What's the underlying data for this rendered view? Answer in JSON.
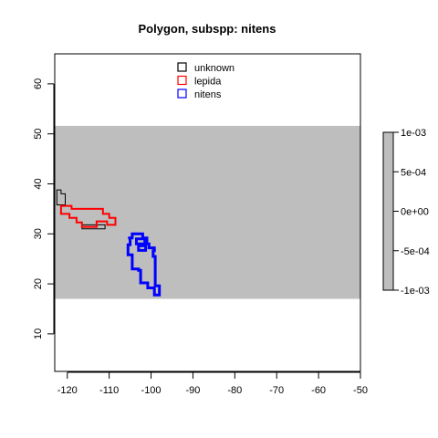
{
  "chart_data": {
    "type": "map-polygons",
    "title": "Polygon, subspp: nitens",
    "xlabel": "",
    "ylabel": "",
    "xlim": [
      -123,
      -50
    ],
    "ylim": [
      2.5,
      66
    ],
    "x_ticks": [
      -120,
      -110,
      -100,
      -90,
      -80,
      -70,
      -60,
      -50
    ],
    "y_ticks": [
      10,
      20,
      30,
      40,
      50,
      60
    ],
    "background_band": {
      "ymin": 17,
      "ymax": 51.6,
      "color": "#bebebe"
    },
    "legend_position": "top-center",
    "series": [
      {
        "name": "unknown",
        "color": "#000000",
        "line_width": 1,
        "polygons": [
          [
            [
              -122.5,
              35.8
            ],
            [
              -122.5,
              38.8
            ],
            [
              -121.5,
              38.8
            ],
            [
              -121.5,
              38.0
            ],
            [
              -120.5,
              38.0
            ],
            [
              -120.5,
              35.8
            ],
            [
              -122.5,
              35.8
            ]
          ],
          [
            [
              -116.5,
              31.8
            ],
            [
              -116.5,
              31.0
            ],
            [
              -111.0,
              31.0
            ],
            [
              -111.0,
              31.8
            ],
            [
              -116.5,
              31.8
            ]
          ]
        ]
      },
      {
        "name": "lepida",
        "color": "#ff0000",
        "line_width": 2,
        "polygons": [
          [
            [
              -121.5,
              35.6
            ],
            [
              -119.0,
              35.6
            ],
            [
              -119.0,
              35.0
            ],
            [
              -111.5,
              35.0
            ],
            [
              -111.5,
              34.0
            ],
            [
              -110.0,
              34.0
            ],
            [
              -110.0,
              33.2
            ],
            [
              -108.5,
              33.2
            ],
            [
              -108.5,
              31.8
            ],
            [
              -110.5,
              31.8
            ],
            [
              -110.5,
              32.5
            ],
            [
              -113.0,
              32.5
            ],
            [
              -113.0,
              31.4
            ],
            [
              -116.5,
              31.4
            ],
            [
              -116.5,
              32.3
            ],
            [
              -117.8,
              32.3
            ],
            [
              -117.8,
              33.2
            ],
            [
              -119.5,
              33.2
            ],
            [
              -119.5,
              34.0
            ],
            [
              -121.5,
              34.0
            ],
            [
              -121.5,
              35.6
            ]
          ]
        ]
      },
      {
        "name": "nitens",
        "color": "#0000ff",
        "line_width": 3,
        "polygons": [
          [
            [
              -105.5,
              29.2
            ],
            [
              -104.5,
              29.2
            ],
            [
              -104.5,
              30.0
            ],
            [
              -102.0,
              30.0
            ],
            [
              -102.0,
              29.2
            ],
            [
              -101.0,
              29.2
            ],
            [
              -101.0,
              28.0
            ],
            [
              -100.5,
              28.0
            ],
            [
              -100.5,
              27.2
            ],
            [
              -99.2,
              27.2
            ],
            [
              -99.2,
              26.6
            ],
            [
              -99.5,
              26.6
            ],
            [
              -99.5,
              25.5
            ],
            [
              -99.0,
              25.5
            ],
            [
              -99.0,
              19.6
            ],
            [
              -98.0,
              19.6
            ],
            [
              -98.0,
              17.8
            ],
            [
              -99.2,
              17.8
            ],
            [
              -99.2,
              19.2
            ],
            [
              -100.8,
              19.2
            ],
            [
              -100.8,
              20.2
            ],
            [
              -102.5,
              20.2
            ],
            [
              -102.5,
              22.7
            ],
            [
              -103.0,
              22.7
            ],
            [
              -103.0,
              23.0
            ],
            [
              -104.5,
              23.0
            ],
            [
              -104.5,
              25.8
            ],
            [
              -105.5,
              25.8
            ],
            [
              -105.5,
              27.8
            ],
            [
              -105.0,
              27.8
            ],
            [
              -105.0,
              29.2
            ],
            [
              -105.5,
              29.2
            ]
          ],
          [
            [
              -103.5,
              28.0
            ],
            [
              -101.5,
              28.0
            ],
            [
              -101.5,
              29.0
            ],
            [
              -103.5,
              29.0
            ],
            [
              -103.5,
              28.0
            ]
          ],
          [
            [
              -103.0,
              26.7
            ],
            [
              -101.3,
              26.7
            ],
            [
              -101.3,
              27.6
            ],
            [
              -103.0,
              27.6
            ],
            [
              -103.0,
              26.7
            ]
          ]
        ]
      }
    ],
    "colorbar": {
      "color": "#bebebe",
      "ticks": [
        "1e-03",
        "5e-04",
        "0e+00",
        "-5e-04",
        "-1e-03"
      ]
    }
  }
}
